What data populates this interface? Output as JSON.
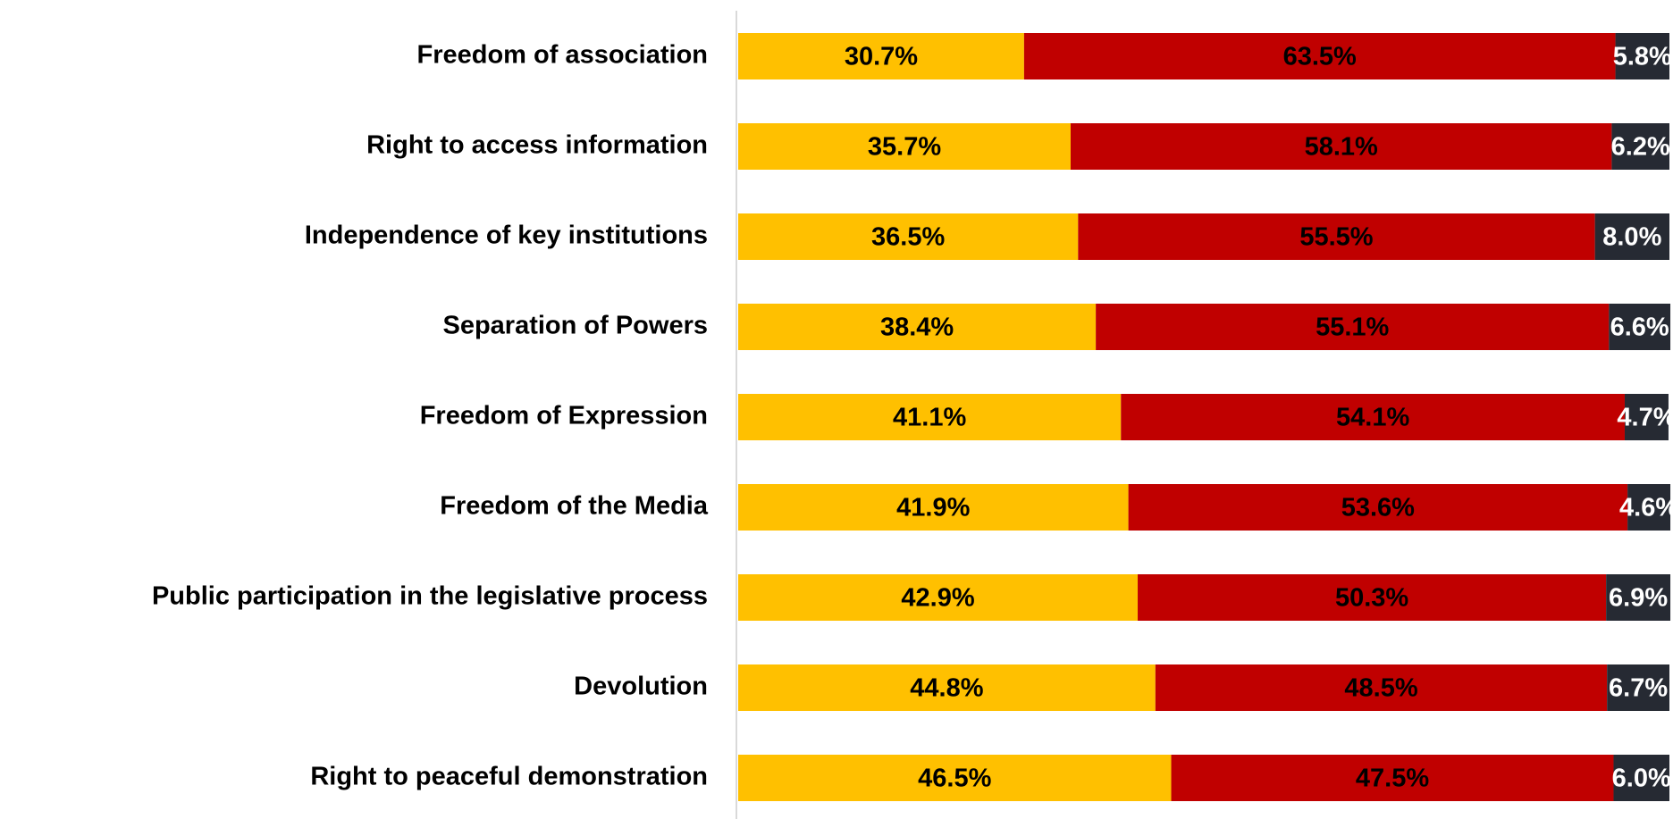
{
  "chart_data": {
    "type": "stacked-bar-horizontal",
    "categories": [
      "Freedom of association",
      "Right to access information",
      "Independence of key institutions",
      "Separation of Powers",
      "Freedom of Expression",
      "Freedom of the Media",
      "Public participation in the legislative process",
      "Devolution",
      "Right to peaceful demonstration"
    ],
    "xlim": [
      0,
      100
    ],
    "series": [
      {
        "color": "#FFC000",
        "label_color": "#000000",
        "values": [
          30.7,
          35.7,
          36.5,
          38.4,
          41.1,
          41.9,
          42.9,
          44.8,
          46.5
        ],
        "value_labels": [
          "30.7%",
          "35.7%",
          "36.5%",
          "38.4%",
          "41.1%",
          "41.9%",
          "42.9%",
          "44.8%",
          "46.5%"
        ]
      },
      {
        "color": "#C00000",
        "label_color": "#000000",
        "values": [
          63.5,
          58.1,
          55.5,
          55.1,
          54.1,
          53.6,
          50.3,
          48.5,
          47.5
        ],
        "value_labels": [
          "63.5%",
          "58.1%",
          "55.5%",
          "55.1%",
          "54.1%",
          "53.6%",
          "50.3%",
          "48.5%",
          "47.5%"
        ]
      },
      {
        "color": "#262A33",
        "label_color": "#FFFFFF",
        "values": [
          5.8,
          6.2,
          8.0,
          6.6,
          4.7,
          4.6,
          6.9,
          6.7,
          6.0
        ],
        "value_labels": [
          "5.8%",
          "6.2%",
          "8.0%",
          "6.6%",
          "4.7%",
          "4.6%",
          "6.9%",
          "6.7%",
          "6.0%"
        ]
      }
    ]
  }
}
